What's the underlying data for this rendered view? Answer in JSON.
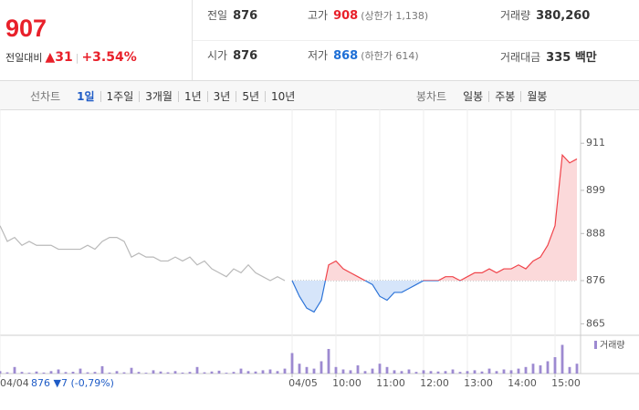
{
  "header": {
    "price": "907",
    "change_label": "전일대비",
    "change": "▲31",
    "rate": "+3.54%",
    "stats": [
      {
        "label": "전일",
        "value": "876"
      },
      {
        "label": "고가",
        "value": "908",
        "note": "(상한가 1,138)",
        "color": "#e8202a"
      },
      {
        "label": "거래량",
        "value": "380,260"
      },
      {
        "label": "시가",
        "value": "876"
      },
      {
        "label": "저가",
        "value": "868",
        "note": "(하한가 614)",
        "color": "#1e6fd6"
      },
      {
        "label": "거래대금",
        "value": "335 백만"
      }
    ]
  },
  "tabs": {
    "line_label": "선차트",
    "line_items": [
      "1일",
      "1주일",
      "3개월",
      "1년",
      "3년",
      "5년",
      "10년"
    ],
    "selected": 0,
    "candle_label": "봉차트",
    "candle_items": [
      "일봉",
      "주봉",
      "월봉"
    ]
  },
  "chart_data": {
    "type": "line",
    "categories": [
      "04/04",
      null,
      null,
      null,
      null,
      null,
      null,
      null,
      null,
      null,
      null,
      null,
      null,
      null,
      null,
      null,
      null,
      null,
      null,
      null,
      null,
      null,
      null,
      null,
      null,
      null,
      null,
      null,
      null,
      null,
      null,
      null,
      null,
      null,
      null,
      null,
      null,
      null,
      null,
      null,
      "04/05",
      null,
      null,
      null,
      null,
      null,
      "10:00",
      null,
      null,
      null,
      null,
      null,
      "11:00",
      null,
      null,
      null,
      null,
      null,
      "12:00",
      null,
      null,
      null,
      null,
      null,
      "13:00",
      null,
      null,
      null,
      null,
      null,
      "14:00",
      null,
      null,
      null,
      null,
      null,
      "15:00",
      null,
      null,
      null
    ],
    "series": [
      {
        "color": "#b9b9b9",
        "values": [
          890,
          886,
          887,
          885,
          886,
          885,
          885,
          885,
          884,
          884,
          884,
          884,
          885,
          884,
          886,
          887,
          887,
          886,
          882,
          883,
          882,
          882,
          881,
          881,
          882,
          881,
          882,
          880,
          881,
          879,
          878,
          877,
          879,
          878,
          880,
          878,
          877,
          876,
          877,
          876,
          null,
          null,
          null,
          null,
          null,
          null,
          null,
          null,
          null,
          null,
          null,
          null,
          null,
          null,
          null,
          null,
          null,
          null,
          null,
          null,
          null,
          null,
          null,
          null,
          null,
          null,
          null,
          null,
          null,
          null,
          null,
          null,
          null,
          null,
          null,
          null,
          null,
          null,
          null,
          null
        ]
      },
      {
        "color": "#f0434a",
        "color_down": "#2d74d8",
        "fill": "#fbd9da",
        "fill_down": "#d6e5fa",
        "values": [
          null,
          null,
          null,
          null,
          null,
          null,
          null,
          null,
          null,
          null,
          null,
          null,
          null,
          null,
          null,
          null,
          null,
          null,
          null,
          null,
          null,
          null,
          null,
          null,
          null,
          null,
          null,
          null,
          null,
          null,
          null,
          null,
          null,
          null,
          null,
          null,
          null,
          null,
          null,
          null,
          876,
          872,
          869,
          868,
          871,
          880,
          881,
          879,
          878,
          877,
          876,
          875,
          872,
          871,
          873,
          873,
          874,
          875,
          876,
          876,
          876,
          877,
          877,
          876,
          877,
          878,
          878,
          879,
          878,
          879,
          879,
          880,
          879,
          881,
          882,
          885,
          890,
          908,
          906,
          907
        ]
      }
    ],
    "baseline": 876,
    "ylim": [
      863,
      915
    ],
    "yticks": [
      865,
      876,
      888,
      899,
      911
    ],
    "volume": {
      "name": "거래량",
      "color": "#9d8ad1",
      "values": [
        3000,
        1500,
        8000,
        2000,
        1000,
        2500,
        1200,
        3000,
        5000,
        1800,
        2200,
        6000,
        1500,
        2000,
        9000,
        1200,
        3000,
        1500,
        7000,
        2000,
        1000,
        4000,
        2500,
        1500,
        3000,
        1200,
        2000,
        8000,
        1500,
        2500,
        3500,
        1000,
        2000,
        6000,
        3000,
        2500,
        4000,
        5000,
        3000,
        6000,
        25000,
        12000,
        8000,
        6000,
        15000,
        30000,
        8000,
        5000,
        4000,
        10000,
        3000,
        6000,
        12000,
        8000,
        4000,
        3000,
        5000,
        2000,
        4000,
        3000,
        2500,
        3000,
        5000,
        2000,
        3000,
        4000,
        2500,
        6000,
        3000,
        5000,
        4000,
        6000,
        8000,
        12000,
        10000,
        15000,
        20000,
        35000,
        8000,
        12000
      ],
      "ylim": [
        0,
        40000
      ]
    },
    "tooltip": "876 ▼7 (-0,79%)"
  }
}
